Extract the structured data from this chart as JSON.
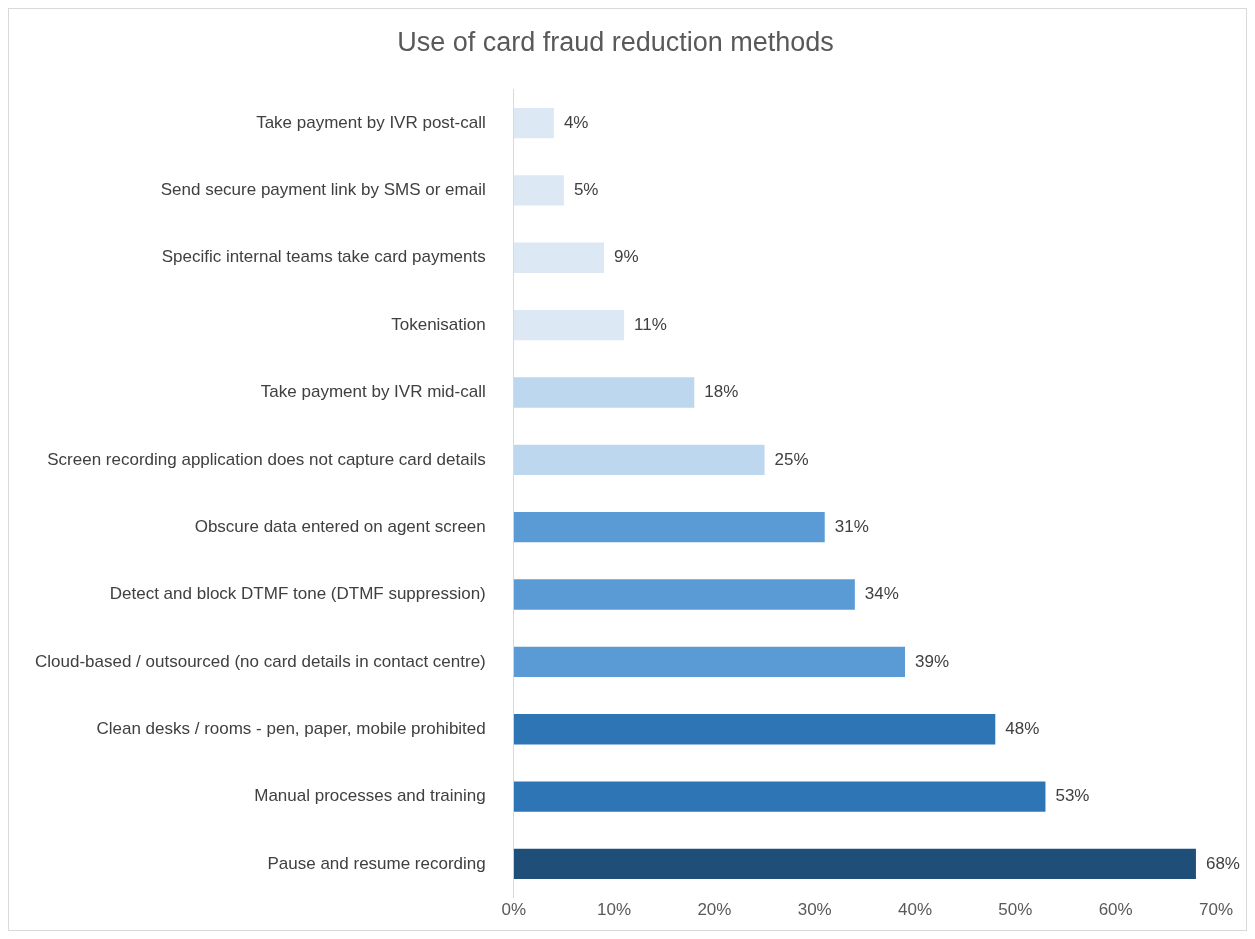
{
  "chart_data": {
    "type": "bar",
    "orientation": "horizontal",
    "title": "Use of card fraud reduction methods",
    "categories": [
      "Take payment by IVR post-call",
      "Send secure payment link by SMS or email",
      "Specific internal teams take card payments",
      "Tokenisation",
      "Take payment by IVR mid-call",
      "Screen recording application does not capture card details",
      "Obscure data entered on agent screen",
      "Detect and block DTMF tone (DTMF suppression)",
      "Cloud-based / outsourced (no card details in contact centre)",
      "Clean desks / rooms - pen, paper, mobile prohibited",
      "Manual processes and training",
      "Pause and resume recording"
    ],
    "values": [
      4,
      5,
      9,
      11,
      18,
      25,
      31,
      34,
      39,
      48,
      53,
      68
    ],
    "value_labels": [
      "4%",
      "5%",
      "9%",
      "11%",
      "18%",
      "25%",
      "31%",
      "34%",
      "39%",
      "48%",
      "53%",
      "68%"
    ],
    "colors": [
      "#dde8f5",
      "#dde8f5",
      "#dde8f5",
      "#dde8f5",
      "#bdd7ee",
      "#bdd7ee",
      "#5b9bd5",
      "#5b9bd5",
      "#5b9bd5",
      "#2e75b6",
      "#2e75b6",
      "#1f4e79"
    ],
    "xlim": [
      0,
      70
    ],
    "xticks": [
      {
        "value": 0,
        "label": "0%"
      },
      {
        "value": 10,
        "label": "10%"
      },
      {
        "value": 20,
        "label": "20%"
      },
      {
        "value": 30,
        "label": "30%"
      },
      {
        "value": 40,
        "label": "40%"
      },
      {
        "value": 50,
        "label": "50%"
      },
      {
        "value": 60,
        "label": "60%"
      },
      {
        "value": 70,
        "label": "70%"
      }
    ],
    "grid": false,
    "legend": false
  }
}
